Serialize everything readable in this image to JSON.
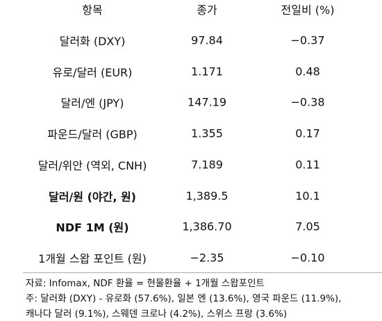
{
  "table": {
    "header": [
      "항목",
      "종가",
      "전일비 (%)"
    ],
    "rows": [
      [
        "달러화 (DXY)",
        "97.84",
        "−0.37"
      ],
      [
        "유로/달러 (EUR)",
        "1.171",
        "0.48"
      ],
      [
        "달러/엔 (JPY)",
        "147.19",
        "−0.38"
      ],
      [
        "파운드/달러 (GBP)",
        "1.355",
        "0.17"
      ],
      [
        "달러/위안 (역외, CNH)",
        "7.189",
        "0.11"
      ],
      [
        "달러/원 (야간, 원)",
        "1,389.5",
        "10.1"
      ],
      [
        "NDF 1M (원)",
        "1,386.70",
        "7.05"
      ],
      [
        "1개월 스왑 포인트 (원)",
        "−2.35",
        "−0.10"
      ]
    ],
    "bold_rows": [
      5,
      6
    ]
  },
  "notes": [
    "자료: Infomax, NDF 환율 = 현물환율 + 1개월 스왑포인트",
    "주: 달러화 (DXY) - 유로화 (57.6%), 일본 엔 (13.6%), 영국 파운드 (11.9%),",
    "캐나다 달러 (9.1%), 스웨덴 크로나 (4.2%), 스위스 프랑 (3.6%)"
  ]
}
